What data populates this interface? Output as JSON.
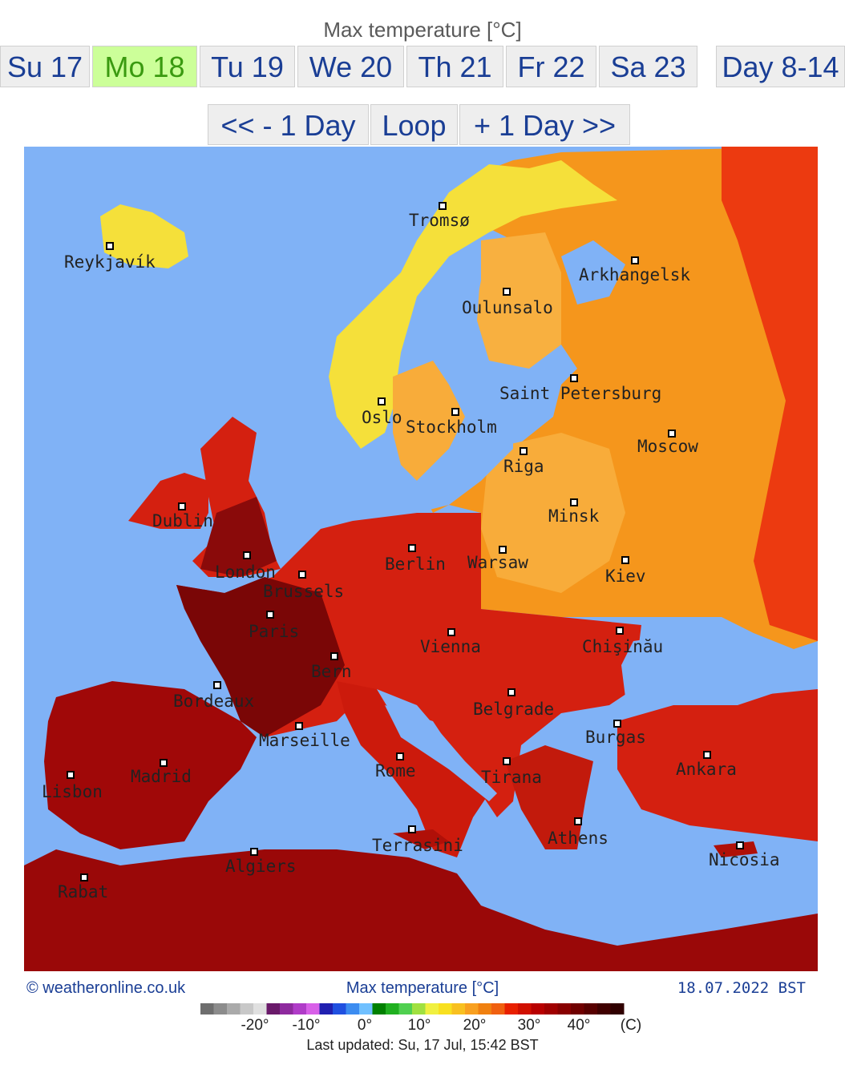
{
  "header": {
    "title": "Max temperature [°C]"
  },
  "tabs": [
    "Su 17",
    "Mo 18",
    "Tu 19",
    "We 20",
    "Th 21",
    "Fr 22",
    "Sa 23",
    "Day 8-14"
  ],
  "nav": [
    "<< - 1 Day",
    "Loop",
    "+ 1 Day >>"
  ],
  "map": {
    "cities": [
      "Tromsø",
      "Reykjavík",
      "Arkhangelsk",
      "Oulunsalo",
      "Saint Petersburg",
      "Oslo",
      "Stockholm",
      "Moscow",
      "Riga",
      "Minsk",
      "Dublin",
      "Berlin",
      "Warsaw",
      "London",
      "Kiev",
      "Brussels",
      "Paris",
      "Chişinău",
      "Vienna",
      "Bern",
      "Bordeaux",
      "Belgrade",
      "Burgas",
      "Marseille",
      "Ankara",
      "Rome",
      "Madrid",
      "Tirana",
      "Lisbon",
      "Terrasini",
      "Athens",
      "Nicosia",
      "Algiers",
      "Rabat"
    ]
  },
  "footer": {
    "source": "© weatheronline.co.uk",
    "title": "Max temperature [°C]",
    "date": "18.07.2022 BST"
  },
  "legend": {
    "labels": [
      "-20°",
      "-10°",
      "0°",
      "10°",
      "20°",
      "30°",
      "40°",
      "(C)"
    ]
  },
  "updated": "Last updated: Su, 17 Jul, 15:42 BST"
}
